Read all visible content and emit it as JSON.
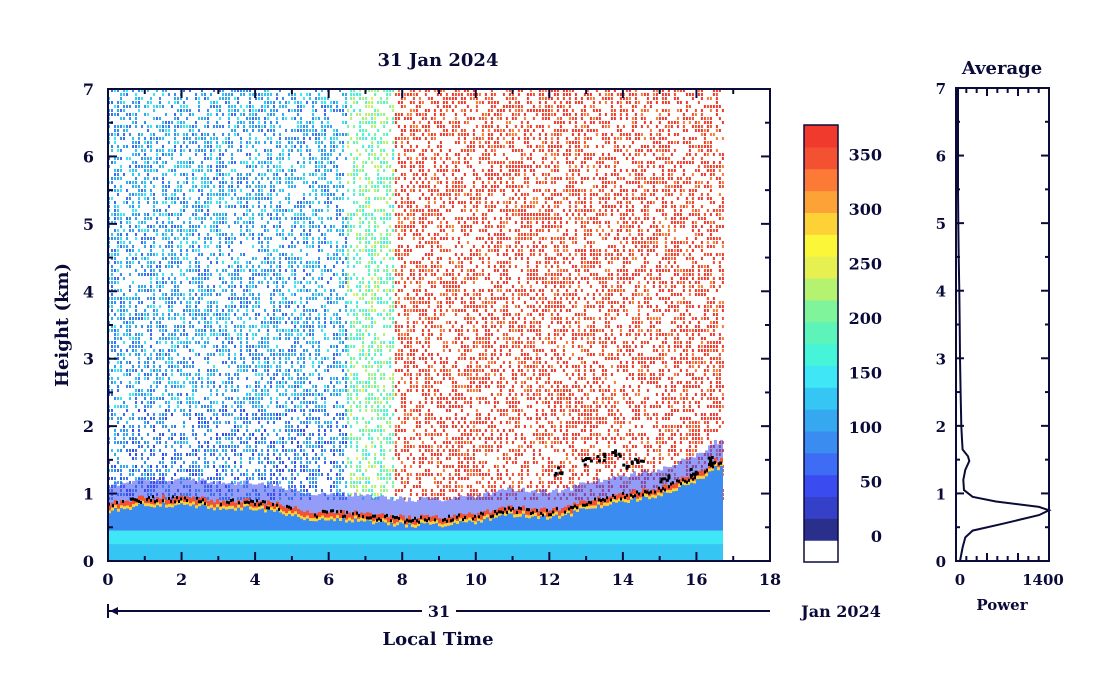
{
  "chart_data": [
    {
      "type": "heatmap",
      "title": "31 Jan 2024",
      "xlabel": "Local Time",
      "ylabel": "Height (km)",
      "xlim": [
        0,
        18
      ],
      "ylim": [
        0,
        7
      ],
      "x_ticks": [
        "0",
        "2",
        "4",
        "6",
        "8",
        "10",
        "12",
        "14",
        "16",
        "18"
      ],
      "y_ticks": [
        "0",
        "1",
        "2",
        "3",
        "4",
        "5",
        "6",
        "7"
      ],
      "date_axis": {
        "day": "31",
        "month_label": "Jan 2024"
      },
      "data_end_time": 16.7,
      "colorbar": {
        "ticks": [
          "0",
          "50",
          "100",
          "150",
          "200",
          "250",
          "300",
          "350"
        ],
        "colors": [
          "#ffffff",
          "#2b2f8c",
          "#3440c8",
          "#3a4cf0",
          "#3f6cf4",
          "#3a8cf0",
          "#36a8f0",
          "#36c6f4",
          "#3ee6f6",
          "#46f4d8",
          "#5cf4b8",
          "#80f49a",
          "#b4f270",
          "#e6f050",
          "#fcf638",
          "#fcd236",
          "#fca236",
          "#fc7a36",
          "#f45032",
          "#f03a2e"
        ],
        "min": 0,
        "max": 380
      },
      "background_level": [
        {
          "t0": 0.0,
          "t1": 6.5,
          "value": 110
        },
        {
          "t0": 6.5,
          "t1": 7.8,
          "value": 200
        },
        {
          "t0": 7.8,
          "t1": 16.7,
          "value": 370
        }
      ],
      "aerosol_layer_top_km": [
        {
          "t": 0.0,
          "h": 0.85
        },
        {
          "t": 1.0,
          "h": 0.95
        },
        {
          "t": 2.0,
          "h": 0.95
        },
        {
          "t": 3.0,
          "h": 0.9
        },
        {
          "t": 4.0,
          "h": 0.9
        },
        {
          "t": 5.0,
          "h": 0.8
        },
        {
          "t": 5.5,
          "h": 0.7
        },
        {
          "t": 6.0,
          "h": 0.75
        },
        {
          "t": 7.0,
          "h": 0.7
        },
        {
          "t": 8.0,
          "h": 0.65
        },
        {
          "t": 9.0,
          "h": 0.65
        },
        {
          "t": 10.0,
          "h": 0.7
        },
        {
          "t": 11.0,
          "h": 0.8
        },
        {
          "t": 12.0,
          "h": 0.75
        },
        {
          "t": 12.5,
          "h": 0.8
        },
        {
          "t": 13.0,
          "h": 0.9
        },
        {
          "t": 14.0,
          "h": 1.0
        },
        {
          "t": 15.0,
          "h": 1.1
        },
        {
          "t": 16.0,
          "h": 1.3
        },
        {
          "t": 16.5,
          "h": 1.5
        }
      ],
      "cloud_points": [
        {
          "t": 12.2,
          "h": 1.35
        },
        {
          "t": 13.0,
          "h": 1.5
        },
        {
          "t": 13.4,
          "h": 1.55
        },
        {
          "t": 13.8,
          "h": 1.6
        },
        {
          "t": 14.1,
          "h": 1.45
        },
        {
          "t": 14.4,
          "h": 1.5
        },
        {
          "t": 15.1,
          "h": 1.25
        },
        {
          "t": 15.9,
          "h": 1.35
        },
        {
          "t": 16.4,
          "h": 1.5
        }
      ]
    },
    {
      "type": "line",
      "title": "Average",
      "xlabel": "Power",
      "ylabel": "",
      "xlim": [
        0,
        1400
      ],
      "ylim": [
        0,
        7
      ],
      "x_ticks": [
        "0",
        "1400"
      ],
      "y_ticks": [
        "0",
        "1",
        "2",
        "3",
        "4",
        "5",
        "6",
        "7"
      ],
      "series": [
        {
          "points": [
            [
              60,
              0.0
            ],
            [
              100,
              0.2
            ],
            [
              140,
              0.35
            ],
            [
              250,
              0.45
            ],
            [
              700,
              0.55
            ],
            [
              1250,
              0.68
            ],
            [
              1400,
              0.75
            ],
            [
              1250,
              0.8
            ],
            [
              600,
              0.88
            ],
            [
              250,
              0.95
            ],
            [
              120,
              1.05
            ],
            [
              110,
              1.2
            ],
            [
              140,
              1.35
            ],
            [
              200,
              1.48
            ],
            [
              180,
              1.55
            ],
            [
              100,
              1.65
            ],
            [
              90,
              1.8
            ],
            [
              80,
              2.0
            ],
            [
              70,
              2.5
            ],
            [
              60,
              3.0
            ],
            [
              55,
              3.5
            ],
            [
              50,
              4.0
            ],
            [
              40,
              4.5
            ],
            [
              35,
              5.0
            ],
            [
              30,
              5.5
            ],
            [
              30,
              6.0
            ],
            [
              30,
              6.5
            ],
            [
              30,
              7.0
            ]
          ]
        }
      ]
    }
  ]
}
